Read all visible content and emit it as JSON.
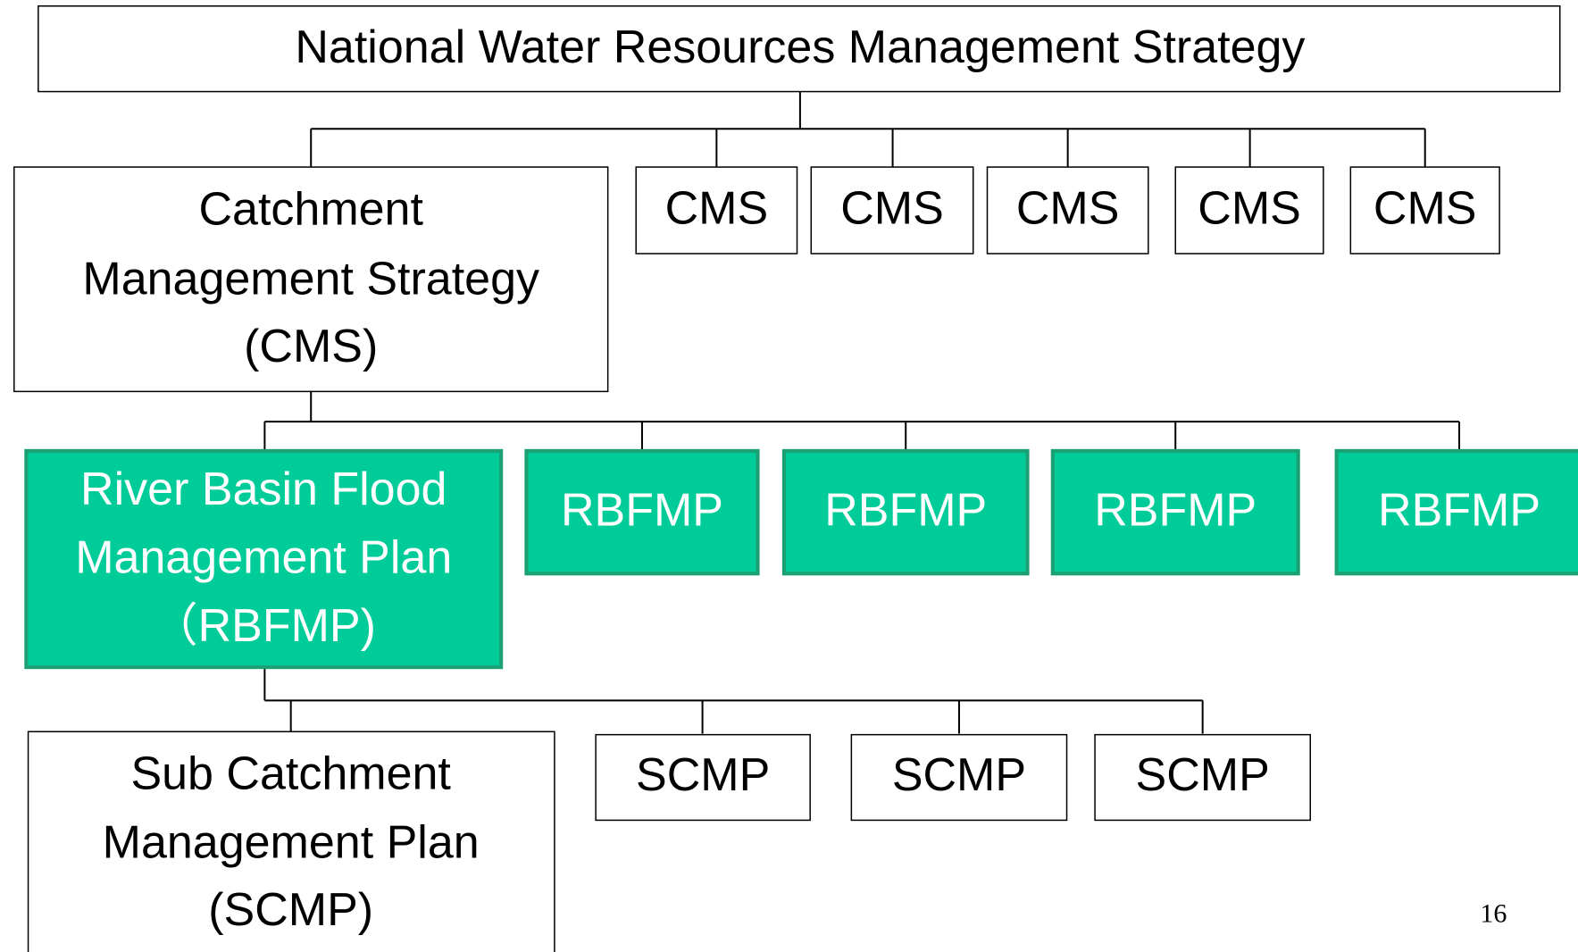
{
  "title": "National Water Resources Management Strategy",
  "cms": {
    "main": [
      "Catchment",
      "Management Strategy",
      "(CMS)"
    ],
    "items": [
      "CMS",
      "CMS",
      "CMS",
      "CMS",
      "CMS"
    ]
  },
  "rbfmp": {
    "main": [
      "River Basin Flood",
      "Management Plan",
      "（RBFMP)"
    ],
    "items": [
      "RBFMP",
      "RBFMP",
      "RBFMP",
      "RBFMP"
    ]
  },
  "scmp": {
    "main": [
      "Sub Catchment",
      "Management Plan",
      "(SCMP)"
    ],
    "items": [
      "SCMP",
      "SCMP",
      "SCMP"
    ]
  },
  "page_number": "16"
}
